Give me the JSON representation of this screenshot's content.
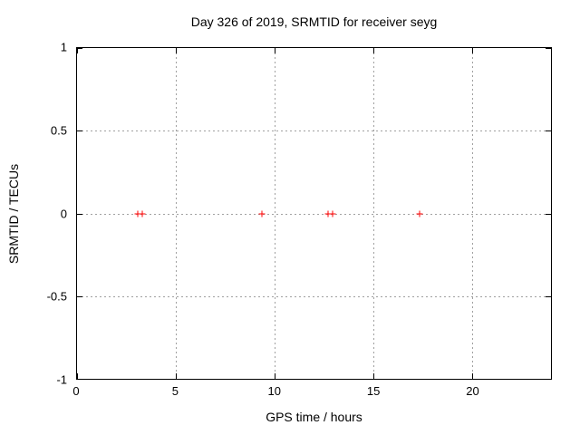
{
  "chart_data": {
    "type": "scatter",
    "title": "Day 326 of 2019, SRMTID for receiver seyg",
    "xlabel": "GPS time / hours",
    "ylabel": "SRMTID / TECUs",
    "xlim": [
      0,
      24
    ],
    "ylim": [
      -1,
      1
    ],
    "xticks": {
      "values": [
        0,
        5,
        10,
        15,
        20
      ],
      "labels": [
        "0",
        "5",
        "10",
        "15",
        "20"
      ]
    },
    "yticks": {
      "values": [
        1,
        0.5,
        0,
        -0.5,
        -1
      ],
      "labels": [
        "1",
        "0.5",
        "0",
        "-0.5",
        "-1"
      ]
    },
    "grid": true,
    "legend": "none",
    "colors": {
      "marker": "#ff0000",
      "grid": "#a0a0a0",
      "frame": "#000000",
      "background": "#ffffff",
      "text": "#000000"
    },
    "series": [
      {
        "name": "srmtid-points",
        "marker": "plus",
        "x": [
          3.06,
          3.31,
          9.36,
          12.73,
          12.96,
          17.33
        ],
        "y": [
          0,
          0,
          0,
          0,
          0,
          0
        ]
      }
    ]
  }
}
